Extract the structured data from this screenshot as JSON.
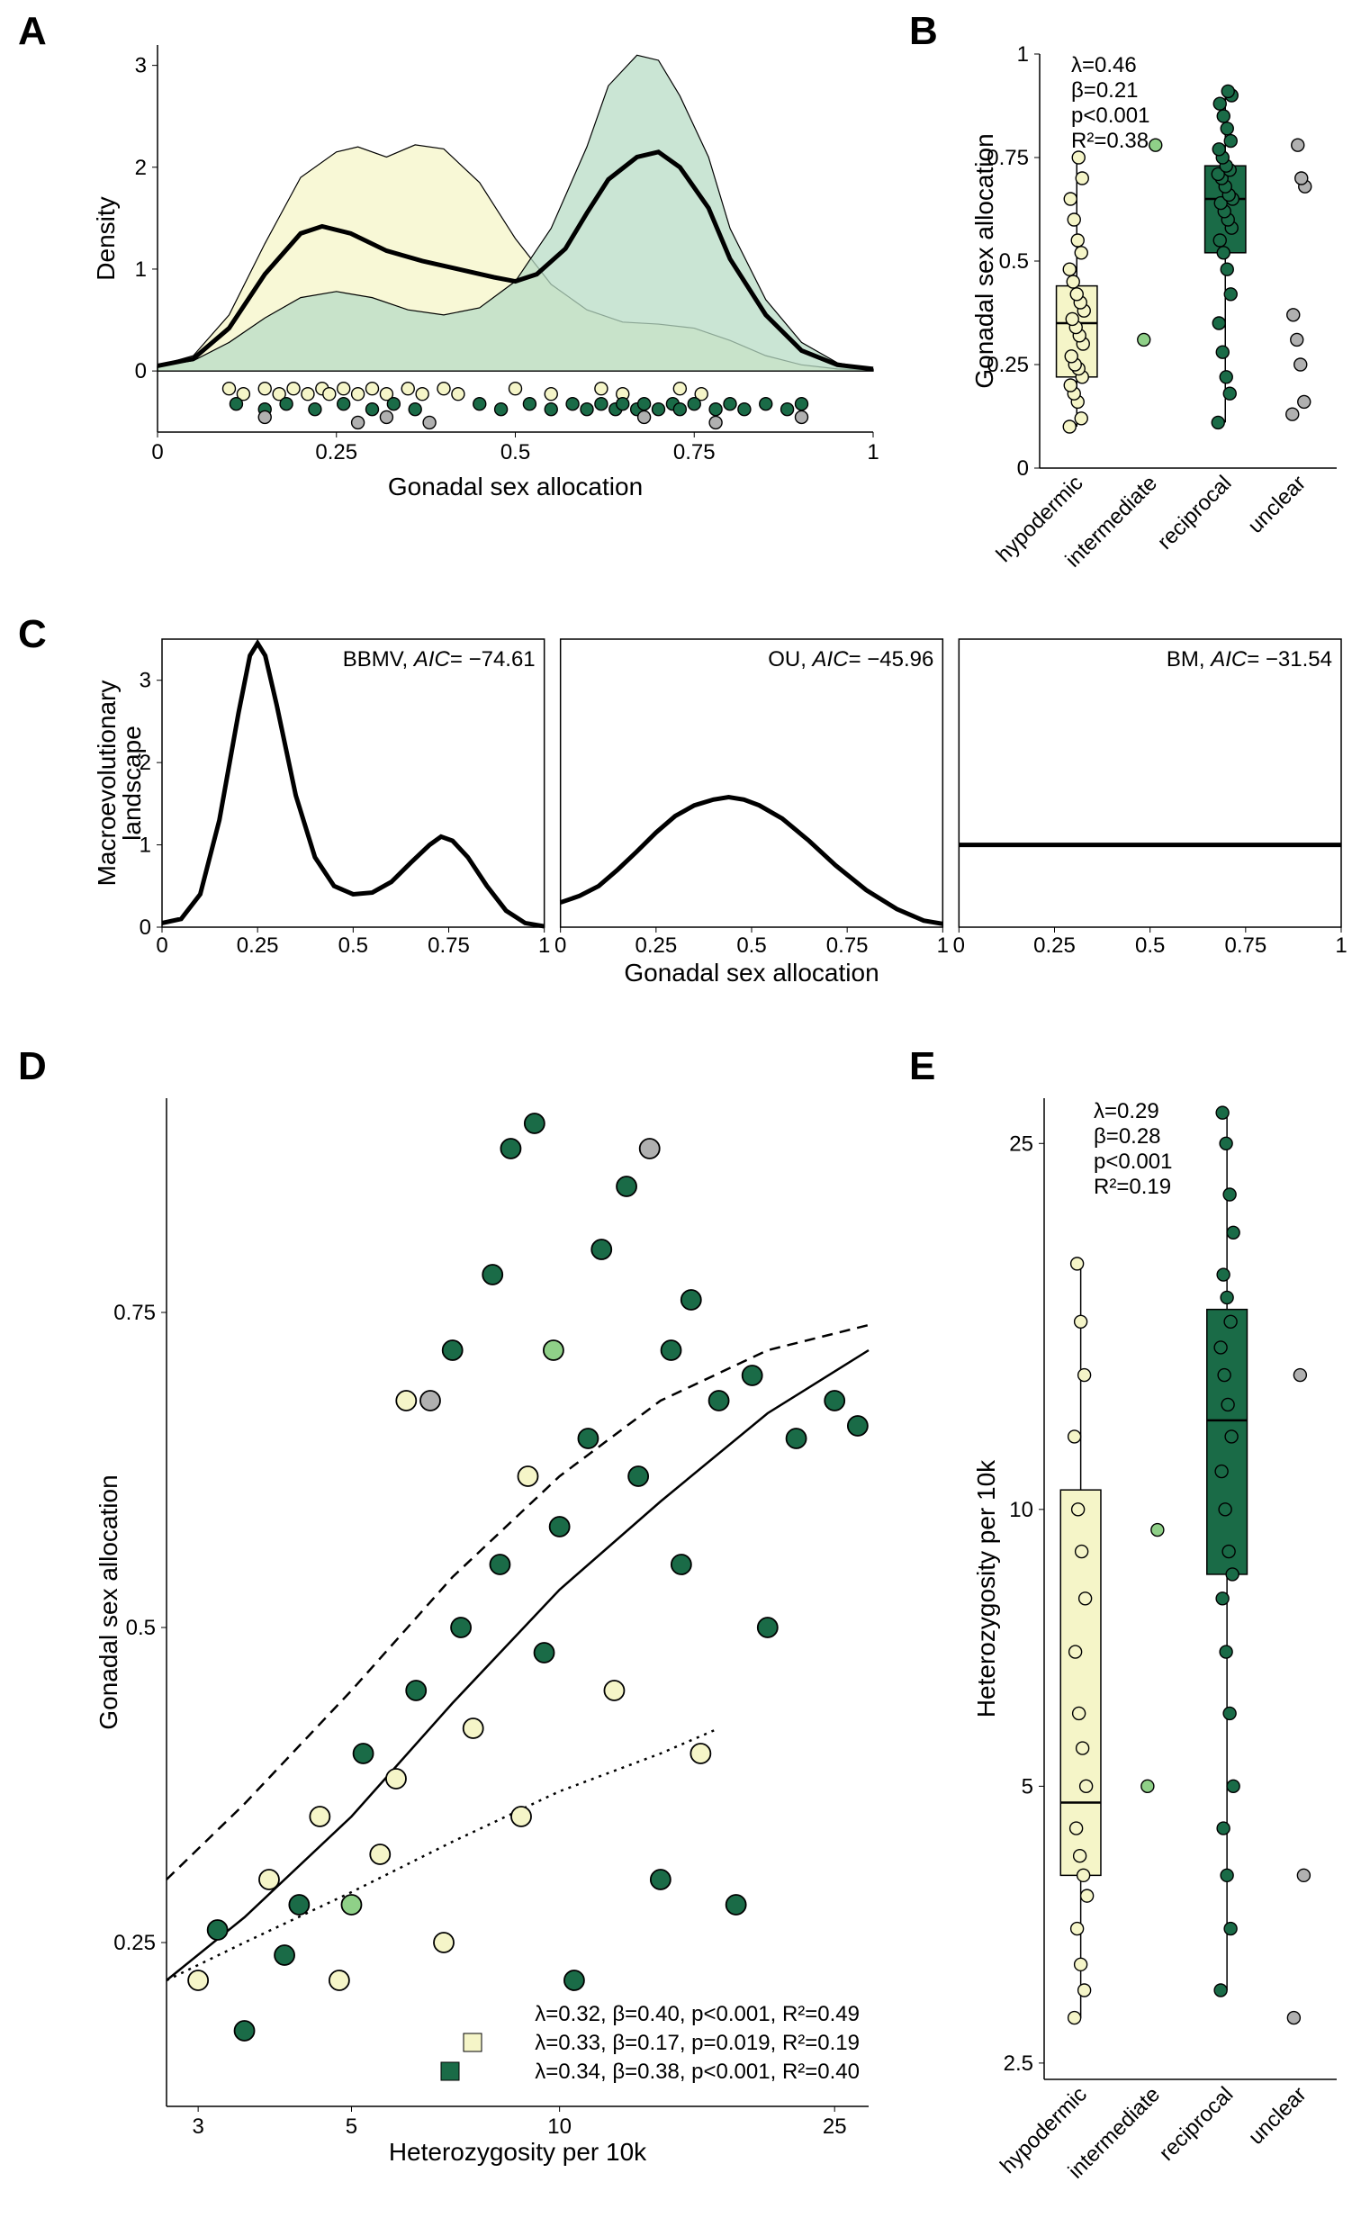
{
  "colors": {
    "hypodermic": "#f5f5c8",
    "intermediate": "#8fd088",
    "reciprocal": "#1a6b47",
    "unclear": "#b0b0b0",
    "stroke": "#000000",
    "density_green_fill": "#b8dcc5",
    "density_yellow_fill": "#f5f5c8",
    "reciprocal_box": "#1a6b47",
    "black": "#000000"
  },
  "panelA": {
    "label": "A",
    "xlabel": "Gonadal sex allocation",
    "ylabel": "Density",
    "xlim": [
      0,
      1
    ],
    "ylim": [
      0,
      3.2
    ],
    "xticks": [
      0,
      0.25,
      0.5,
      0.75,
      1
    ],
    "yticks": [
      0,
      1,
      2,
      3
    ],
    "density_yellow": [
      [
        0,
        0.05
      ],
      [
        0.05,
        0.15
      ],
      [
        0.1,
        0.55
      ],
      [
        0.15,
        1.25
      ],
      [
        0.2,
        1.9
      ],
      [
        0.25,
        2.15
      ],
      [
        0.28,
        2.2
      ],
      [
        0.32,
        2.1
      ],
      [
        0.36,
        2.22
      ],
      [
        0.4,
        2.18
      ],
      [
        0.45,
        1.85
      ],
      [
        0.5,
        1.3
      ],
      [
        0.55,
        0.85
      ],
      [
        0.6,
        0.6
      ],
      [
        0.65,
        0.48
      ],
      [
        0.7,
        0.46
      ],
      [
        0.75,
        0.42
      ],
      [
        0.8,
        0.3
      ],
      [
        0.85,
        0.15
      ],
      [
        0.9,
        0.06
      ],
      [
        0.95,
        0.02
      ],
      [
        1.0,
        0.01
      ]
    ],
    "density_green": [
      [
        0,
        0.05
      ],
      [
        0.05,
        0.1
      ],
      [
        0.1,
        0.28
      ],
      [
        0.15,
        0.52
      ],
      [
        0.2,
        0.72
      ],
      [
        0.25,
        0.78
      ],
      [
        0.3,
        0.72
      ],
      [
        0.35,
        0.6
      ],
      [
        0.4,
        0.55
      ],
      [
        0.45,
        0.62
      ],
      [
        0.5,
        0.88
      ],
      [
        0.55,
        1.4
      ],
      [
        0.6,
        2.2
      ],
      [
        0.63,
        2.8
      ],
      [
        0.67,
        3.1
      ],
      [
        0.7,
        3.05
      ],
      [
        0.73,
        2.7
      ],
      [
        0.77,
        2.1
      ],
      [
        0.8,
        1.4
      ],
      [
        0.85,
        0.7
      ],
      [
        0.9,
        0.28
      ],
      [
        0.95,
        0.08
      ],
      [
        1.0,
        0.02
      ]
    ],
    "density_black": [
      [
        0,
        0.05
      ],
      [
        0.05,
        0.12
      ],
      [
        0.1,
        0.42
      ],
      [
        0.15,
        0.95
      ],
      [
        0.2,
        1.35
      ],
      [
        0.23,
        1.42
      ],
      [
        0.27,
        1.35
      ],
      [
        0.32,
        1.18
      ],
      [
        0.37,
        1.08
      ],
      [
        0.42,
        1.0
      ],
      [
        0.47,
        0.92
      ],
      [
        0.5,
        0.88
      ],
      [
        0.53,
        0.95
      ],
      [
        0.57,
        1.2
      ],
      [
        0.6,
        1.55
      ],
      [
        0.63,
        1.88
      ],
      [
        0.67,
        2.1
      ],
      [
        0.7,
        2.15
      ],
      [
        0.73,
        2.0
      ],
      [
        0.77,
        1.6
      ],
      [
        0.8,
        1.1
      ],
      [
        0.85,
        0.55
      ],
      [
        0.9,
        0.2
      ],
      [
        0.95,
        0.06
      ],
      [
        1.0,
        0.02
      ]
    ],
    "dots_yellow_y": -0.2,
    "dots_green_y": -0.35,
    "dots_grey_y": -0.48,
    "dots_yellow": [
      0.1,
      0.12,
      0.15,
      0.17,
      0.19,
      0.21,
      0.23,
      0.24,
      0.26,
      0.28,
      0.3,
      0.32,
      0.35,
      0.37,
      0.4,
      0.42,
      0.5,
      0.55,
      0.62,
      0.65,
      0.73,
      0.76
    ],
    "dots_green": [
      0.11,
      0.15,
      0.18,
      0.22,
      0.26,
      0.3,
      0.33,
      0.36,
      0.45,
      0.48,
      0.52,
      0.55,
      0.58,
      0.6,
      0.62,
      0.64,
      0.65,
      0.67,
      0.68,
      0.7,
      0.72,
      0.73,
      0.75,
      0.78,
      0.8,
      0.82,
      0.85,
      0.88,
      0.9
    ],
    "dots_grey": [
      0.15,
      0.28,
      0.32,
      0.38,
      0.68,
      0.78,
      0.9
    ]
  },
  "panelB": {
    "label": "B",
    "ylabel": "Gonadal sex allocation",
    "ylim": [
      0,
      1
    ],
    "yticks": [
      0,
      0.25,
      0.5,
      0.75,
      1
    ],
    "categories": [
      "hypodermic",
      "intermediate",
      "reciprocal",
      "unclear"
    ],
    "stats": {
      "lambda": "λ=0.46",
      "beta": "β=0.21",
      "p": "p<0.001",
      "r2": "R²=0.38"
    },
    "box_hypodermic": {
      "q1": 0.22,
      "med": 0.35,
      "q3": 0.44,
      "wlo": 0.1,
      "whi": 0.75,
      "fill": "#f5f5c8"
    },
    "box_reciprocal": {
      "q1": 0.52,
      "med": 0.65,
      "q3": 0.73,
      "wlo": 0.11,
      "whi": 0.91,
      "fill": "#1a6b47"
    },
    "points_hypodermic": [
      0.1,
      0.12,
      0.16,
      0.18,
      0.2,
      0.22,
      0.24,
      0.25,
      0.27,
      0.3,
      0.32,
      0.34,
      0.36,
      0.38,
      0.4,
      0.42,
      0.45,
      0.48,
      0.52,
      0.55,
      0.6,
      0.65,
      0.7,
      0.75
    ],
    "points_intermediate": [
      0.31,
      0.78
    ],
    "points_reciprocal": [
      0.11,
      0.18,
      0.22,
      0.28,
      0.35,
      0.42,
      0.48,
      0.52,
      0.55,
      0.58,
      0.6,
      0.62,
      0.64,
      0.65,
      0.66,
      0.68,
      0.7,
      0.71,
      0.72,
      0.73,
      0.75,
      0.77,
      0.79,
      0.82,
      0.85,
      0.88,
      0.9,
      0.91
    ],
    "points_unclear": [
      0.13,
      0.16,
      0.25,
      0.31,
      0.37,
      0.68,
      0.7,
      0.78
    ]
  },
  "panelC": {
    "label": "C",
    "xlabel": "Gonadal sex allocation",
    "ylabel": "Macroevolutionary\nlandscape",
    "xlim": [
      0,
      1
    ],
    "ylim": [
      0,
      3.5
    ],
    "xticks": [
      0,
      0.25,
      0.5,
      0.75,
      1
    ],
    "yticks": [
      0,
      1,
      2,
      3
    ],
    "subpanels": [
      {
        "title_model": "BBMV,",
        "title_aic": "AIC= −74.61",
        "curve": [
          [
            0,
            0.05
          ],
          [
            0.05,
            0.1
          ],
          [
            0.1,
            0.4
          ],
          [
            0.15,
            1.3
          ],
          [
            0.2,
            2.6
          ],
          [
            0.23,
            3.3
          ],
          [
            0.25,
            3.45
          ],
          [
            0.27,
            3.3
          ],
          [
            0.3,
            2.7
          ],
          [
            0.35,
            1.6
          ],
          [
            0.4,
            0.85
          ],
          [
            0.45,
            0.5
          ],
          [
            0.5,
            0.4
          ],
          [
            0.55,
            0.42
          ],
          [
            0.6,
            0.55
          ],
          [
            0.65,
            0.78
          ],
          [
            0.7,
            1.0
          ],
          [
            0.73,
            1.1
          ],
          [
            0.76,
            1.05
          ],
          [
            0.8,
            0.85
          ],
          [
            0.85,
            0.5
          ],
          [
            0.9,
            0.2
          ],
          [
            0.95,
            0.05
          ],
          [
            1.0,
            0.01
          ]
        ]
      },
      {
        "title_model": "OU,",
        "title_aic": "AIC= −45.96",
        "curve": [
          [
            0,
            0.3
          ],
          [
            0.05,
            0.38
          ],
          [
            0.1,
            0.5
          ],
          [
            0.15,
            0.7
          ],
          [
            0.2,
            0.92
          ],
          [
            0.25,
            1.15
          ],
          [
            0.3,
            1.35
          ],
          [
            0.35,
            1.48
          ],
          [
            0.4,
            1.55
          ],
          [
            0.44,
            1.58
          ],
          [
            0.48,
            1.55
          ],
          [
            0.52,
            1.48
          ],
          [
            0.58,
            1.32
          ],
          [
            0.65,
            1.05
          ],
          [
            0.72,
            0.75
          ],
          [
            0.8,
            0.45
          ],
          [
            0.88,
            0.22
          ],
          [
            0.95,
            0.08
          ],
          [
            1.0,
            0.04
          ]
        ]
      },
      {
        "title_model": "BM,",
        "title_aic": "AIC= −31.54",
        "curve": [
          [
            0,
            1.0
          ],
          [
            1.0,
            1.0
          ]
        ]
      }
    ]
  },
  "panelD": {
    "label": "D",
    "xlabel": "Heterozygosity per 10k",
    "ylabel": "Gonadal sex allocation",
    "xlim_log": [
      2.7,
      28
    ],
    "ylim": [
      0.12,
      0.92
    ],
    "xticks": [
      3,
      5,
      10,
      25
    ],
    "yticks": [
      0.25,
      0.5,
      0.75
    ],
    "legend": {
      "line1": "λ=0.32, β=0.40, p<0.001, R²=0.49",
      "line2": "λ=0.33, β=0.17, p=0.019, R²=0.19",
      "line3": "λ=0.34, β=0.38, p<0.001, R²=0.40"
    },
    "points": [
      {
        "x": 3.0,
        "y": 0.22,
        "c": "hypodermic"
      },
      {
        "x": 3.2,
        "y": 0.26,
        "c": "reciprocal"
      },
      {
        "x": 3.5,
        "y": 0.18,
        "c": "reciprocal"
      },
      {
        "x": 3.8,
        "y": 0.3,
        "c": "hypodermic"
      },
      {
        "x": 4.0,
        "y": 0.24,
        "c": "reciprocal"
      },
      {
        "x": 4.2,
        "y": 0.28,
        "c": "reciprocal"
      },
      {
        "x": 4.5,
        "y": 0.35,
        "c": "hypodermic"
      },
      {
        "x": 4.8,
        "y": 0.22,
        "c": "hypodermic"
      },
      {
        "x": 5.0,
        "y": 0.28,
        "c": "intermediate"
      },
      {
        "x": 5.2,
        "y": 0.4,
        "c": "reciprocal"
      },
      {
        "x": 5.5,
        "y": 0.32,
        "c": "hypodermic"
      },
      {
        "x": 5.8,
        "y": 0.38,
        "c": "hypodermic"
      },
      {
        "x": 6.0,
        "y": 0.68,
        "c": "hypodermic"
      },
      {
        "x": 6.2,
        "y": 0.45,
        "c": "reciprocal"
      },
      {
        "x": 6.5,
        "y": 0.68,
        "c": "unclear"
      },
      {
        "x": 6.8,
        "y": 0.25,
        "c": "hypodermic"
      },
      {
        "x": 7.0,
        "y": 0.72,
        "c": "reciprocal"
      },
      {
        "x": 7.2,
        "y": 0.5,
        "c": "reciprocal"
      },
      {
        "x": 7.5,
        "y": 0.42,
        "c": "hypodermic"
      },
      {
        "x": 8.0,
        "y": 0.78,
        "c": "reciprocal"
      },
      {
        "x": 8.2,
        "y": 0.55,
        "c": "reciprocal"
      },
      {
        "x": 8.5,
        "y": 0.88,
        "c": "reciprocal"
      },
      {
        "x": 8.8,
        "y": 0.35,
        "c": "hypodermic"
      },
      {
        "x": 9.0,
        "y": 0.62,
        "c": "hypodermic"
      },
      {
        "x": 9.2,
        "y": 0.9,
        "c": "reciprocal"
      },
      {
        "x": 9.5,
        "y": 0.48,
        "c": "reciprocal"
      },
      {
        "x": 9.8,
        "y": 0.72,
        "c": "intermediate"
      },
      {
        "x": 10,
        "y": 0.58,
        "c": "reciprocal"
      },
      {
        "x": 10.5,
        "y": 0.22,
        "c": "reciprocal"
      },
      {
        "x": 11,
        "y": 0.65,
        "c": "reciprocal"
      },
      {
        "x": 11.5,
        "y": 0.8,
        "c": "reciprocal"
      },
      {
        "x": 12,
        "y": 0.45,
        "c": "hypodermic"
      },
      {
        "x": 12.5,
        "y": 0.85,
        "c": "reciprocal"
      },
      {
        "x": 13,
        "y": 0.62,
        "c": "reciprocal"
      },
      {
        "x": 13.5,
        "y": 0.88,
        "c": "unclear"
      },
      {
        "x": 14,
        "y": 0.3,
        "c": "reciprocal"
      },
      {
        "x": 14.5,
        "y": 0.72,
        "c": "reciprocal"
      },
      {
        "x": 15,
        "y": 0.55,
        "c": "reciprocal"
      },
      {
        "x": 15.5,
        "y": 0.76,
        "c": "reciprocal"
      },
      {
        "x": 16,
        "y": 0.4,
        "c": "hypodermic"
      },
      {
        "x": 17,
        "y": 0.68,
        "c": "reciprocal"
      },
      {
        "x": 18,
        "y": 0.28,
        "c": "reciprocal"
      },
      {
        "x": 19,
        "y": 0.7,
        "c": "reciprocal"
      },
      {
        "x": 20,
        "y": 0.5,
        "c": "reciprocal"
      },
      {
        "x": 22,
        "y": 0.65,
        "c": "reciprocal"
      },
      {
        "x": 25,
        "y": 0.68,
        "c": "reciprocal"
      },
      {
        "x": 27,
        "y": 0.66,
        "c": "reciprocal"
      }
    ],
    "curve_solid": [
      [
        2.7,
        0.22
      ],
      [
        3.5,
        0.27
      ],
      [
        5,
        0.35
      ],
      [
        7,
        0.44
      ],
      [
        10,
        0.53
      ],
      [
        14,
        0.6
      ],
      [
        20,
        0.67
      ],
      [
        28,
        0.72
      ]
    ],
    "curve_dashed": [
      [
        2.7,
        0.3
      ],
      [
        3.5,
        0.36
      ],
      [
        5,
        0.45
      ],
      [
        7,
        0.54
      ],
      [
        10,
        0.62
      ],
      [
        14,
        0.68
      ],
      [
        20,
        0.72
      ],
      [
        28,
        0.74
      ]
    ],
    "curve_dotted": [
      [
        2.7,
        0.22
      ],
      [
        3.5,
        0.25
      ],
      [
        5,
        0.29
      ],
      [
        7,
        0.33
      ],
      [
        10,
        0.37
      ],
      [
        14,
        0.4
      ],
      [
        17,
        0.42
      ]
    ]
  },
  "panelE": {
    "label": "E",
    "ylabel": "Heterozygosity per 10k",
    "ylim_log": [
      2.4,
      28
    ],
    "yticks": [
      2.5,
      5,
      10,
      25
    ],
    "categories": [
      "hypodermic",
      "intermediate",
      "reciprocal",
      "unclear"
    ],
    "stats": {
      "lambda": "λ=0.29",
      "beta": "β=0.28",
      "p": "p<0.001",
      "r2": "R²=0.19"
    },
    "box_hypodermic": {
      "q1": 4.0,
      "med": 4.8,
      "q3": 10.5,
      "wlo": 2.8,
      "whi": 18.5,
      "fill": "#f5f5c8"
    },
    "box_reciprocal": {
      "q1": 8.5,
      "med": 12.5,
      "q3": 16.5,
      "wlo": 3.0,
      "whi": 27,
      "fill": "#1a6b47"
    },
    "points_hypodermic": [
      2.8,
      3.0,
      3.2,
      3.5,
      3.8,
      4.0,
      4.2,
      4.5,
      5.0,
      5.5,
      6.0,
      7.0,
      8.0,
      9.0,
      10.0,
      12.0,
      14.0,
      16.0,
      18.5
    ],
    "points_intermediate": [
      5.0,
      9.5
    ],
    "points_reciprocal": [
      3.0,
      3.5,
      4.0,
      4.5,
      5.0,
      6.0,
      7.0,
      8.0,
      8.5,
      9.0,
      10.0,
      11.0,
      12.0,
      13.0,
      14.0,
      15.0,
      16.0,
      17.0,
      18.0,
      20.0,
      22.0,
      25.0,
      27.0
    ],
    "points_unclear": [
      2.8,
      4.0,
      14.0
    ]
  }
}
